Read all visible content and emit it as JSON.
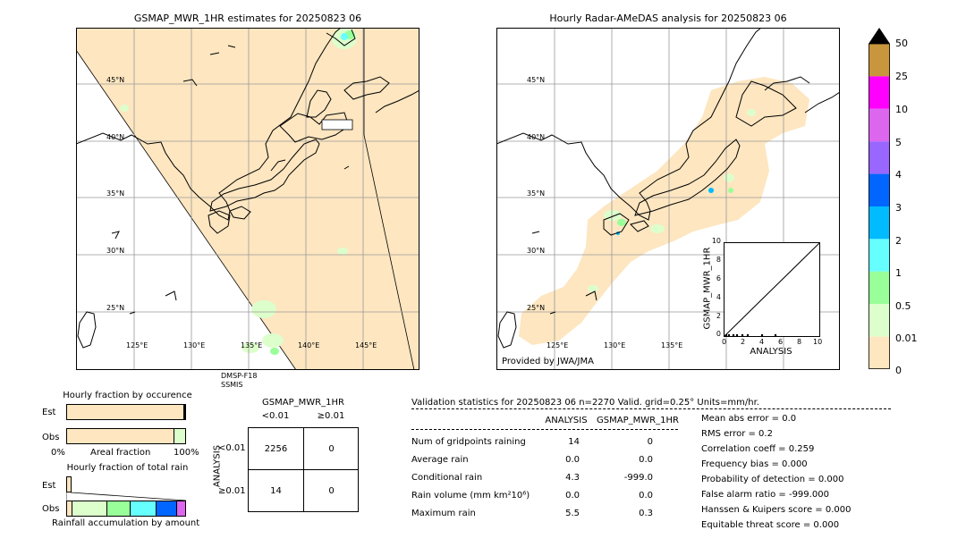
{
  "left_map": {
    "title": "GSMAP_MWR_1HR estimates for 20250823 06",
    "lat_labels": [
      "45°N",
      "40°N",
      "35°N",
      "30°N",
      "25°N"
    ],
    "lon_labels": [
      "125°E",
      "130°E",
      "135°E",
      "140°E",
      "145°E"
    ],
    "satellite_note": [
      "DMSP-F18",
      "SSMIS"
    ]
  },
  "right_map": {
    "title": "Hourly Radar-AMeDAS analysis for 20250823 06",
    "lat_labels": [
      "45°N",
      "40°N",
      "35°N",
      "30°N",
      "25°N"
    ],
    "lon_labels": [
      "125°E",
      "130°E",
      "135°E"
    ],
    "credit": "Provided by JWA/JMA"
  },
  "colorbar": {
    "labels": [
      "50",
      "25",
      "10",
      "5",
      "4",
      "3",
      "2",
      "1",
      "0.5",
      "0.01",
      "0"
    ],
    "colors": [
      "#c8963c",
      "#ff00ff",
      "#dd66ee",
      "#9966ff",
      "#0066ff",
      "#00bbff",
      "#66ffff",
      "#99ff99",
      "#ddffcc",
      "#fde6c0"
    ],
    "extend_color": "#000000"
  },
  "scatter": {
    "ylabel": "GSMAP_MWR_1HR",
    "xlabel": "ANALYSIS",
    "ticks": [
      "0",
      "2",
      "4",
      "6",
      "8",
      "10"
    ]
  },
  "occurrence": {
    "title": "Hourly fraction by occurence",
    "row_est": "Est",
    "row_obs": "Obs",
    "axis_left": "0%",
    "axis_mid": "Areal fraction",
    "axis_right": "100%"
  },
  "total_rain": {
    "title": "Hourly fraction of total rain",
    "row_est": "Est",
    "row_obs": "Obs",
    "footer": "Rainfall accumulation by amount"
  },
  "contingency": {
    "title": "GSMAP_MWR_1HR",
    "col_lt": "<0.01",
    "col_ge": "≥0.01",
    "row_axis": "ANALYSIS",
    "row_lt": "<0.01",
    "row_ge": "≥0.01",
    "values": [
      [
        "2256",
        "0"
      ],
      [
        "14",
        "0"
      ]
    ]
  },
  "validation": {
    "header": "Validation statistics for 20250823 06  n=2270 Valid. grid=0.25° Units=mm/hr.",
    "col_analysis": "ANALYSIS",
    "col_gsmap": "GSMAP_MWR_1HR",
    "rows": [
      {
        "label": "Num of gridpoints raining",
        "analysis": "14",
        "gsmap": "0"
      },
      {
        "label": "Average rain",
        "analysis": "0.0",
        "gsmap": "0.0"
      },
      {
        "label": "Conditional rain",
        "analysis": "4.3",
        "gsmap": "-999.0"
      },
      {
        "label": "Rain volume (mm km²10⁶)",
        "analysis": "0.0",
        "gsmap": "0.0"
      },
      {
        "label": "Maximum rain",
        "analysis": "5.5",
        "gsmap": "0.3"
      }
    ],
    "scores": [
      "Mean abs error =    0.0",
      "RMS error =    0.2",
      "Correlation coeff =  0.259",
      "Frequency bias =  0.000",
      "Probability of detection =  0.000",
      "False alarm ratio = -999.000",
      "Hanssen & Kuipers score =  0.000",
      "Equitable threat score =  0.000"
    ]
  },
  "chart_data": {
    "type": "table",
    "title": "Validation statistics for 20250823 06",
    "columns": [
      "ANALYSIS",
      "GSMAP_MWR_1HR"
    ],
    "rows": [
      {
        "name": "Num of gridpoints raining",
        "values": [
          14,
          0
        ]
      },
      {
        "name": "Average rain",
        "values": [
          0.0,
          0.0
        ]
      },
      {
        "name": "Conditional rain",
        "values": [
          4.3,
          -999.0
        ]
      },
      {
        "name": "Rain volume (mm km²10⁶)",
        "values": [
          0.0,
          0.0
        ]
      },
      {
        "name": "Maximum rain",
        "values": [
          5.5,
          0.3
        ]
      }
    ],
    "contingency": {
      "rows": [
        "<0.01",
        "≥0.01"
      ],
      "columns": [
        "<0.01",
        "≥0.01"
      ],
      "values": [
        [
          2256,
          0
        ],
        [
          14,
          0
        ]
      ]
    },
    "scatter": {
      "xlim": [
        0,
        10
      ],
      "ylim": [
        0,
        10
      ]
    }
  }
}
